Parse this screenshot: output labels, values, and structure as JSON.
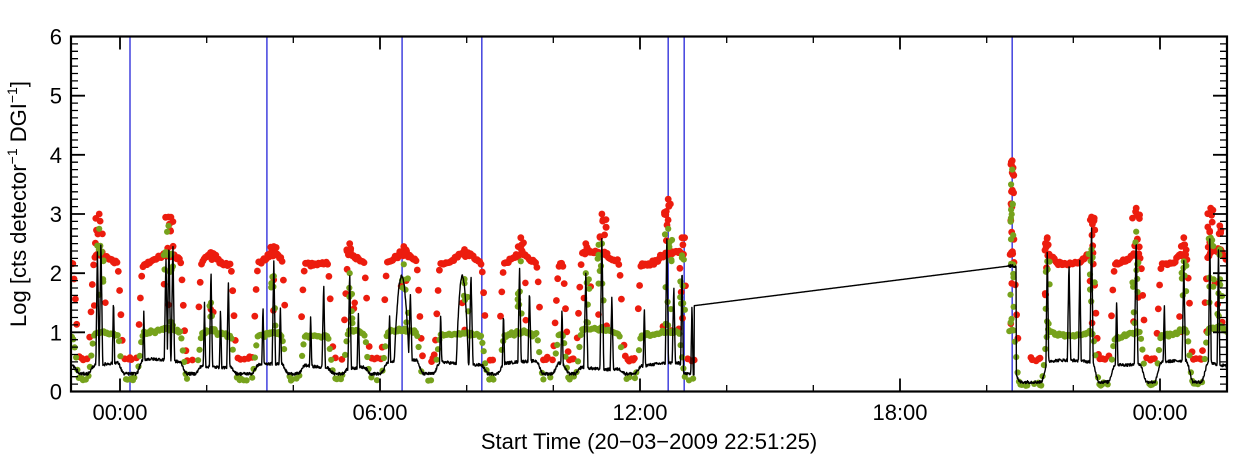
{
  "figure": {
    "xlabel": "Start Time (20−03−2009 22:51:25)",
    "ylabel_prefix": "Log [cts detector",
    "ylabel_sup1": "−1",
    "ylabel_mid": " DGI",
    "ylabel_sup2": "−1",
    "ylabel_suffix": "]"
  },
  "chart_data": {
    "type": "line",
    "title": "",
    "xlabel": "Start Time (20−03−2009 22:51:25)",
    "ylabel": "Log [cts detector−1 DGI−1]",
    "description": "X-ray light curve: black count-rate line, red scatter band near 2.15, green scatter band near 0.95, blue vertical event markers, data gap bridged by a straight line",
    "x_axis": {
      "unit": "time of day (hours from first midnight after start)",
      "domain_h": [
        -1.13,
        25.55
      ],
      "major_ticks": [
        {
          "h": 0,
          "label": "00:00"
        },
        {
          "h": 6,
          "label": "06:00"
        },
        {
          "h": 12,
          "label": "12:00"
        },
        {
          "h": 18,
          "label": "18:00"
        },
        {
          "h": 24,
          "label": "00:00"
        }
      ],
      "minor_step_h": 2
    },
    "y_axis": {
      "domain": [
        0,
        6
      ],
      "major_ticks": [
        0,
        1,
        2,
        3,
        4,
        5,
        6
      ],
      "minor_divisions": 8
    },
    "colors": {
      "line": "#000000",
      "red_scatter": "#ec1c0e",
      "green_scatter": "#76a21c",
      "event_lines": "#4d4de0",
      "frame": "#000000"
    },
    "event_lines_h": [
      0.23,
      3.39,
      6.51,
      8.35,
      12.65,
      13.02,
      20.59
    ],
    "gap": {
      "start_h": 13.25,
      "end_h": 20.5,
      "bridge_start_value": 1.45,
      "bridge_end_value": 2.12
    },
    "post_gap_plateau": [
      20.5,
      20.68,
      2.12
    ],
    "bands": {
      "red_level": 2.15,
      "green_level": 0.95,
      "black_baseline": 0.46,
      "dip_red": 0.55,
      "dip_green": 0.22,
      "dip_green_late": 0.12,
      "dip_black": 0.3,
      "dip_black_late": 0.16
    },
    "dips_h": [
      [
        -0.98,
        -0.7
      ],
      [
        0.05,
        0.42
      ],
      [
        1.5,
        1.78
      ],
      [
        2.66,
        3.08
      ],
      [
        3.84,
        4.16
      ],
      [
        4.9,
        5.16
      ],
      [
        5.74,
        6.06
      ],
      [
        6.95,
        7.28
      ],
      [
        8.45,
        8.75
      ],
      [
        9.72,
        10.02
      ],
      [
        10.32,
        10.55
      ],
      [
        11.62,
        11.92
      ],
      [
        13.0,
        13.3
      ],
      [
        20.72,
        21.3
      ],
      [
        22.55,
        22.85
      ],
      [
        23.65,
        23.92
      ],
      [
        24.72,
        25.0
      ]
    ],
    "black_spikes": [
      [
        -0.52,
        2.45,
        0.045
      ],
      [
        -0.44,
        2.6,
        0.05
      ],
      [
        -0.15,
        1.6,
        0.04
      ],
      [
        0.55,
        1.35,
        0.04
      ],
      [
        1.06,
        2.3,
        0.05
      ],
      [
        1.13,
        2.6,
        0.05
      ],
      [
        1.22,
        2.55,
        0.05
      ],
      [
        1.95,
        1.5,
        0.04
      ],
      [
        2.1,
        2.1,
        0.045
      ],
      [
        2.32,
        1.4,
        0.04
      ],
      [
        2.5,
        1.9,
        0.045
      ],
      [
        3.3,
        1.45,
        0.04
      ],
      [
        3.55,
        2.2,
        0.05
      ],
      [
        3.7,
        1.5,
        0.04
      ],
      [
        4.4,
        1.3,
        0.04
      ],
      [
        4.7,
        1.85,
        0.05
      ],
      [
        5.3,
        2.05,
        0.05
      ],
      [
        5.5,
        1.4,
        0.04
      ],
      [
        6.22,
        1.35,
        0.04
      ],
      [
        6.5,
        1.95,
        0.2
      ],
      [
        6.7,
        1.7,
        0.06
      ],
      [
        7.4,
        1.35,
        0.04
      ],
      [
        7.9,
        1.95,
        0.16
      ],
      [
        8.1,
        2.0,
        0.06
      ],
      [
        8.85,
        1.35,
        0.04
      ],
      [
        9.22,
        2.15,
        0.05
      ],
      [
        9.45,
        1.75,
        0.05
      ],
      [
        10.2,
        1.45,
        0.04
      ],
      [
        10.75,
        2.0,
        0.06
      ],
      [
        11.12,
        2.7,
        0.05
      ],
      [
        11.35,
        1.6,
        0.05
      ],
      [
        12.1,
        1.45,
        0.04
      ],
      [
        12.62,
        2.72,
        0.045
      ],
      [
        12.78,
        1.8,
        0.05
      ],
      [
        12.97,
        2.2,
        0.04
      ],
      [
        13.2,
        1.5,
        0.035
      ],
      [
        21.4,
        2.45,
        0.04
      ],
      [
        21.9,
        2.2,
        0.05
      ],
      [
        22.15,
        2.2,
        0.04
      ],
      [
        22.42,
        2.9,
        0.045
      ],
      [
        23.0,
        1.6,
        0.04
      ],
      [
        23.45,
        2.7,
        0.05
      ],
      [
        24.1,
        1.5,
        0.04
      ],
      [
        24.55,
        2.2,
        0.05
      ],
      [
        25.15,
        2.6,
        0.04
      ],
      [
        25.35,
        2.4,
        0.04
      ]
    ],
    "flares": [
      [
        -0.48,
        3.0,
        2.75,
        0.1
      ],
      [
        1.12,
        2.95,
        2.8,
        0.12
      ],
      [
        2.1,
        2.35,
        1.5,
        0.06
      ],
      [
        3.55,
        2.45,
        1.95,
        0.08
      ],
      [
        5.3,
        2.5,
        2.0,
        0.08
      ],
      [
        6.55,
        2.45,
        2.15,
        0.1
      ],
      [
        7.95,
        2.4,
        1.9,
        0.1
      ],
      [
        9.25,
        2.6,
        2.2,
        0.09
      ],
      [
        10.75,
        2.5,
        2.0,
        0.08
      ],
      [
        11.12,
        3.0,
        2.5,
        0.1
      ],
      [
        12.65,
        3.25,
        2.75,
        0.09
      ],
      [
        12.97,
        2.6,
        2.3,
        0.07
      ],
      [
        20.59,
        3.9,
        3.75,
        0.04
      ],
      [
        21.4,
        2.6,
        2.2,
        0.06
      ],
      [
        22.42,
        2.95,
        2.4,
        0.08
      ],
      [
        23.45,
        3.1,
        2.7,
        0.09
      ],
      [
        24.55,
        2.6,
        2.2,
        0.07
      ],
      [
        25.17,
        3.1,
        2.6,
        0.07
      ],
      [
        25.38,
        2.8,
        2.4,
        0.06
      ]
    ]
  }
}
